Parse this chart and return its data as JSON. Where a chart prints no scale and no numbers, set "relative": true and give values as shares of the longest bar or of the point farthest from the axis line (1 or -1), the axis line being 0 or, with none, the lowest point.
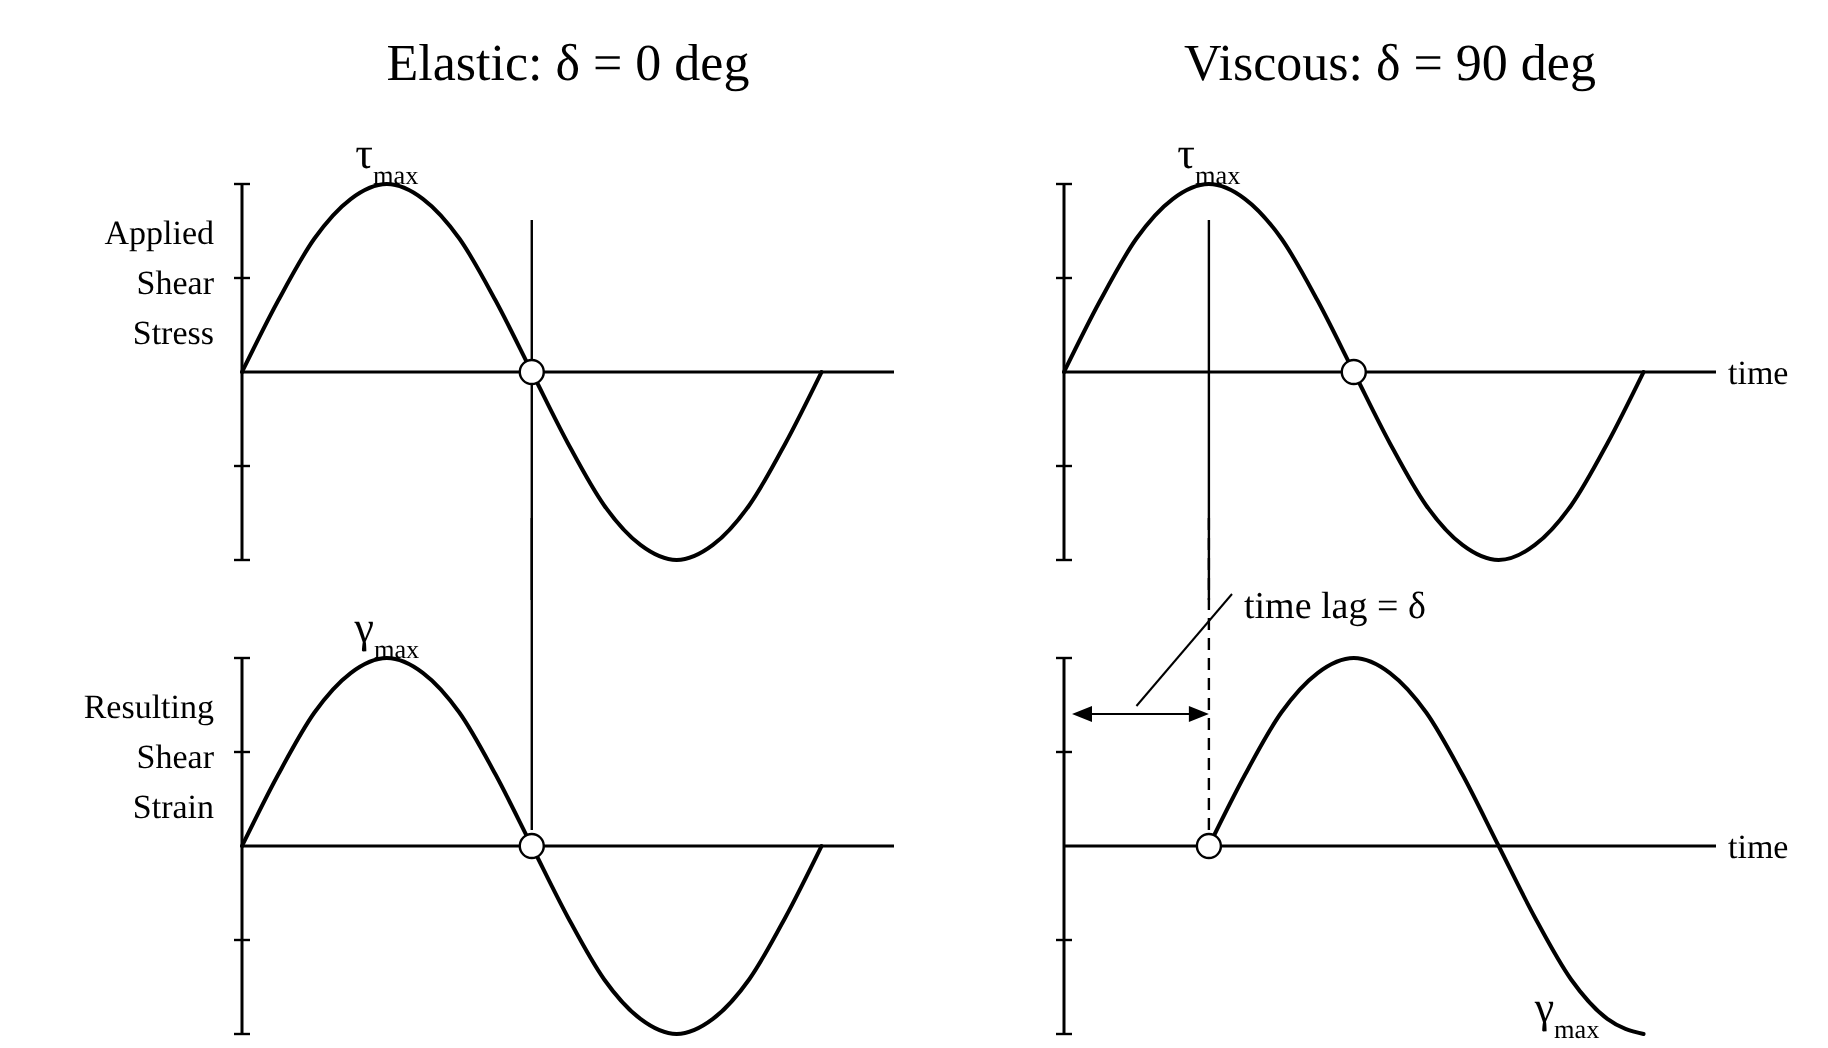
{
  "chart_data": [
    {
      "type": "line",
      "title": "Elastic:  δ = 0 deg",
      "ylabel": "Applied Shear Stress",
      "relative": true,
      "categories": [
        null,
        null,
        null,
        null,
        null,
        null,
        null,
        null,
        null,
        null,
        null,
        null,
        null,
        null,
        null,
        null,
        null,
        null,
        null
      ],
      "series": [
        {
          "color": "#000000",
          "values": [
            0,
            0.38,
            0.71,
            0.92,
            1,
            0.92,
            0.71,
            0.38,
            0,
            -0.38,
            -0.71,
            -0.92,
            -1,
            -0.92,
            -0.71,
            -0.38,
            0,
            null,
            null
          ]
        }
      ],
      "annotations": [
        {
          "text": "τ$_{max}$",
          "y": 1
        }
      ]
    },
    {
      "type": "line",
      "title": "Viscous:  δ = 90 deg",
      "xlabel": "time",
      "relative": true,
      "categories": [
        null,
        null,
        null,
        null,
        null,
        null,
        null,
        null,
        null,
        null,
        null,
        null,
        null,
        null,
        null,
        null,
        null,
        null,
        null
      ],
      "series": [
        {
          "color": "#000000",
          "values": [
            0,
            0.38,
            0.71,
            0.92,
            1,
            0.92,
            0.71,
            0.38,
            0,
            -0.38,
            -0.71,
            -0.92,
            -1,
            -0.92,
            -0.71,
            -0.38,
            0,
            null,
            null
          ]
        }
      ],
      "annotations": [
        {
          "text": "τ$_{max}$",
          "y": 1
        }
      ]
    },
    {
      "type": "line",
      "ylabel": "Resulting Shear Strain",
      "relative": true,
      "categories": [
        null,
        null,
        null,
        null,
        null,
        null,
        null,
        null,
        null,
        null,
        null,
        null,
        null,
        null,
        null,
        null,
        null,
        null,
        null
      ],
      "series": [
        {
          "color": "#000000",
          "values": [
            0,
            0.38,
            0.71,
            0.92,
            1,
            0.92,
            0.71,
            0.38,
            0,
            -0.38,
            -0.71,
            -0.92,
            -1,
            -0.92,
            -0.71,
            -0.38,
            0,
            null,
            null
          ]
        }
      ],
      "annotations": [
        {
          "text": "γ$_{max}$",
          "y": 1
        }
      ]
    },
    {
      "type": "line",
      "xlabel": "time",
      "relative": true,
      "categories": [
        null,
        null,
        null,
        null,
        null,
        null,
        null,
        null,
        null,
        null,
        null,
        null,
        null,
        null,
        null,
        null,
        null,
        null,
        null
      ],
      "series": [
        {
          "color": "#000000",
          "values": [
            null,
            null,
            null,
            null,
            0,
            0.38,
            0.71,
            0.92,
            1,
            0.92,
            0.71,
            0.38,
            0,
            -0.38,
            -0.71,
            -0.92,
            -1,
            null,
            null
          ]
        }
      ],
      "annotations": [
        "γ$_{max}$",
        "time lag = δ"
      ]
    }
  ]
}
